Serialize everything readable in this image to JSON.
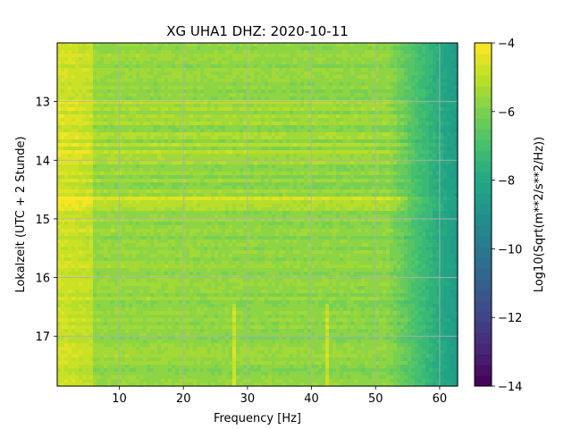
{
  "chart_data": {
    "type": "heatmap",
    "title": "XG UHA1  DHZ: 2020-10-11",
    "xlabel": "Frequency [Hz]",
    "ylabel": "Lokalzeit (UTC + 2 Stunde)",
    "xlim": [
      0.3,
      62.8
    ],
    "ylim": [
      17.85,
      12.0
    ],
    "xticks": [
      10,
      20,
      30,
      40,
      50,
      60
    ],
    "xtick_labels": [
      "10",
      "20",
      "30",
      "40",
      "50",
      "60"
    ],
    "yticks": [
      13,
      14,
      15,
      16,
      17
    ],
    "ytick_labels": [
      "13",
      "14",
      "15",
      "16",
      "17"
    ],
    "grid": true,
    "colorbar": {
      "label": "Log10(Sqrt(m**2/s**2/Hz))",
      "vmin": -14,
      "vmax": -4,
      "levels": 32,
      "ticks": [
        -14,
        -12,
        -10,
        -8,
        -6,
        -4
      ],
      "tick_labels": [
        "−14",
        "−12",
        "−10",
        "−8",
        "−6",
        "−4"
      ],
      "colormap": "viridis"
    },
    "description_values": {
      "low_freq_level": -5.0,
      "mid_freq_level": -5.6,
      "high_freq_edge_level": -8.6,
      "narrowband_lines_hz": [
        27.8,
        42.5
      ]
    }
  }
}
